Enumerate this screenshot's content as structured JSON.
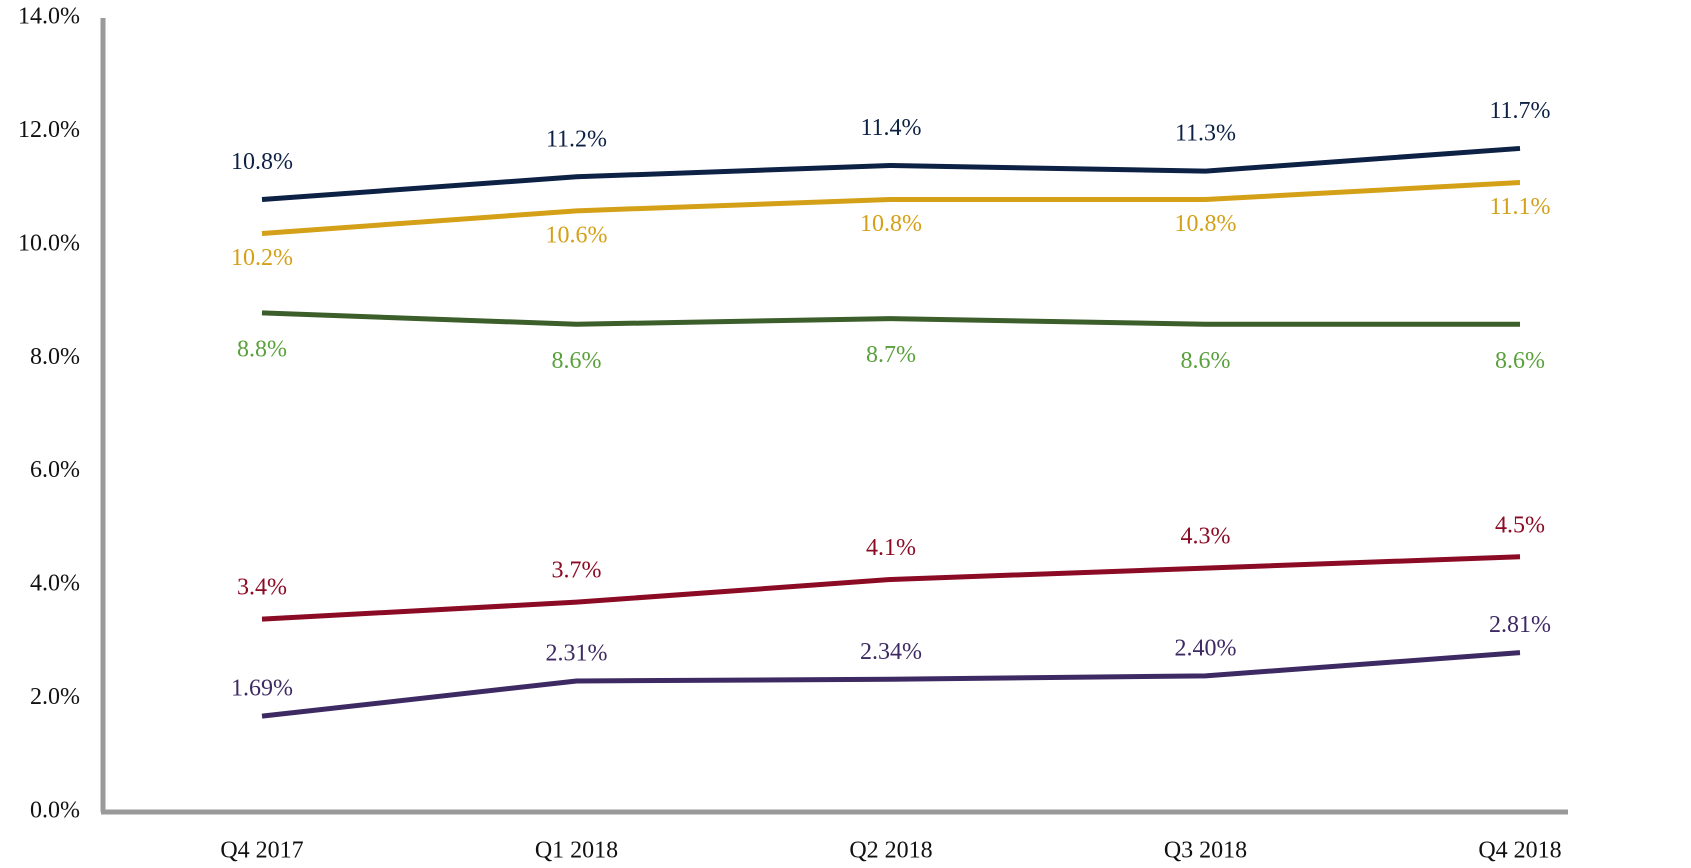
{
  "chart_data": {
    "type": "line",
    "categories": [
      "Q4 2017",
      "Q1 2018",
      "Q2 2018",
      "Q3 2018",
      "Q4 2018"
    ],
    "series": [
      {
        "color": "#0d2145",
        "label_color": "#0d2145",
        "values": [
          10.8,
          11.2,
          11.4,
          11.3,
          11.7
        ],
        "value_labels": [
          "10.8%",
          "11.2%",
          "11.4%",
          "11.3%",
          "11.7%"
        ]
      },
      {
        "color": "#d4a017",
        "label_color": "#d4a017",
        "values": [
          10.2,
          10.6,
          10.8,
          10.8,
          11.1
        ],
        "value_labels": [
          "10.2%",
          "10.6%",
          "10.8%",
          "10.8%",
          "11.1%"
        ]
      },
      {
        "color": "#3b5e2b",
        "label_color": "#5aa03c",
        "values": [
          8.8,
          8.6,
          8.7,
          8.6,
          8.6
        ],
        "value_labels": [
          "8.8%",
          "8.6%",
          "8.7%",
          "8.6%",
          "8.6%"
        ]
      },
      {
        "color": "#8b0a24",
        "label_color": "#8b0a24",
        "values": [
          3.4,
          3.7,
          4.1,
          4.3,
          4.5
        ],
        "value_labels": [
          "3.4%",
          "3.7%",
          "4.1%",
          "4.3%",
          "4.5%"
        ]
      },
      {
        "color": "#3d2a63",
        "label_color": "#3d2a63",
        "values": [
          1.69,
          2.31,
          2.34,
          2.4,
          2.81
        ],
        "value_labels": [
          "1.69%",
          "2.31%",
          "2.34%",
          "2.40%",
          "2.81%"
        ]
      }
    ],
    "ylim": [
      0,
      14
    ],
    "yticks": [
      {
        "value": 0,
        "label": "0.0%"
      },
      {
        "value": 2,
        "label": "2.0%"
      },
      {
        "value": 4,
        "label": "4.0%"
      },
      {
        "value": 6,
        "label": "6.0%"
      },
      {
        "value": 8,
        "label": "8.0%"
      },
      {
        "value": 10,
        "label": "10.0%"
      },
      {
        "value": 12,
        "label": "12.0%"
      },
      {
        "value": 14,
        "label": "14.0%"
      }
    ],
    "grid": false
  }
}
